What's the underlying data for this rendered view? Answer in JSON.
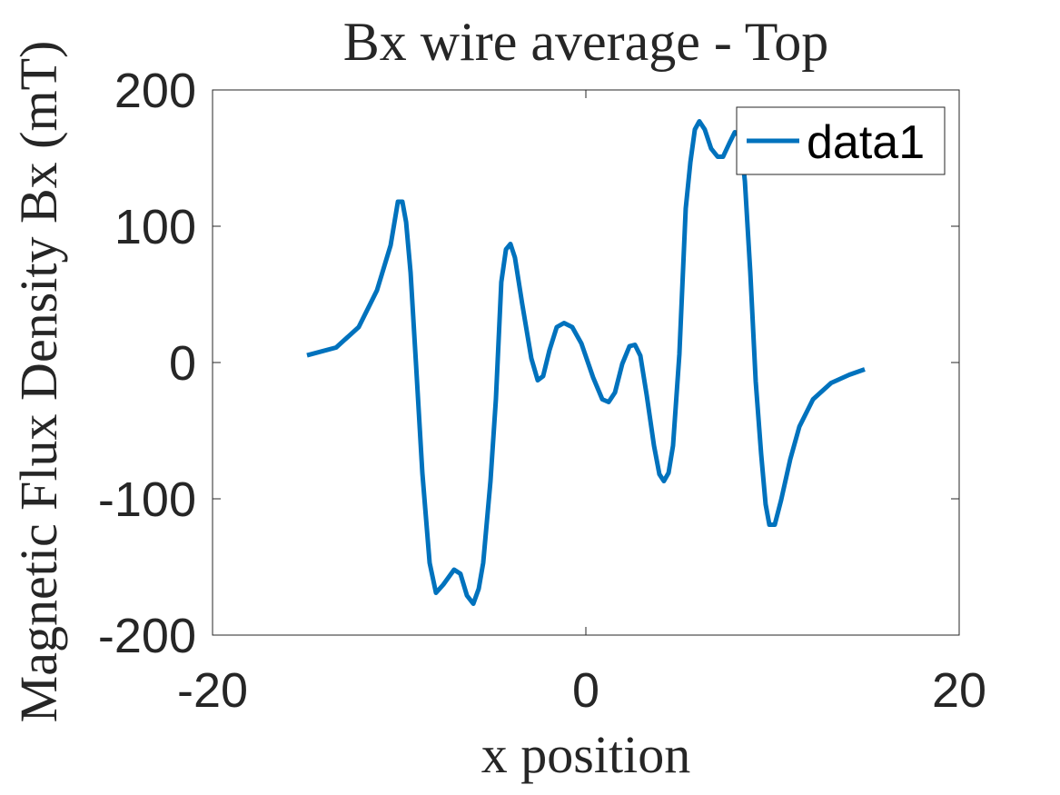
{
  "chart_data": {
    "type": "line",
    "title": "Bx wire average - Top",
    "xlabel": "x position",
    "ylabel": "Magnetic Flux Density Bx (mT)",
    "xlim": [
      -20,
      20
    ],
    "xticks": [
      -20,
      0,
      20
    ],
    "ylim": [
      -200,
      200
    ],
    "yticks": [
      -200,
      -100,
      0,
      100,
      200
    ],
    "grid": false,
    "legend": "top-right",
    "series": [
      {
        "name": "data1",
        "color": "#0072bd",
        "x": [
          -14.94,
          -13.38,
          -12.17,
          -11.19,
          -10.46,
          -10.07,
          -9.83,
          -9.63,
          -9.39,
          -9.1,
          -8.76,
          -8.37,
          -8.03,
          -7.64,
          -7.06,
          -6.72,
          -6.37,
          -6.03,
          -5.74,
          -5.5,
          -5.11,
          -4.82,
          -4.53,
          -4.28,
          -4.04,
          -3.8,
          -3.41,
          -2.92,
          -2.58,
          -2.29,
          -1.95,
          -1.56,
          -1.17,
          -0.73,
          -0.24,
          0.39,
          0.88,
          1.22,
          1.56,
          1.95,
          2.34,
          2.63,
          2.92,
          3.26,
          3.65,
          3.94,
          4.18,
          4.43,
          4.67,
          5.01,
          5.35,
          5.6,
          5.84,
          6.08,
          6.37,
          6.71,
          7.06,
          7.35,
          7.69,
          7.98,
          8.27,
          8.52,
          8.81,
          9.1,
          9.39,
          9.63,
          9.83,
          10.12,
          10.46,
          10.95,
          11.44,
          12.17,
          13.14,
          14.11,
          14.94
        ],
        "values": [
          5.3,
          11,
          26,
          53,
          86,
          118,
          118,
          103,
          66,
          -1,
          -81,
          -147,
          -169,
          -163,
          -152,
          -155,
          -171,
          -177,
          -166,
          -147,
          -87,
          -27,
          59,
          83,
          87,
          77,
          43,
          3,
          -13,
          -10,
          9,
          26,
          29,
          26,
          14,
          -11,
          -27,
          -29,
          -22,
          -1,
          12,
          13,
          5,
          -24,
          -61,
          -82,
          -87,
          -81,
          -61,
          6,
          113,
          147,
          171,
          177,
          171,
          157,
          151,
          151,
          161,
          169,
          166,
          133,
          66,
          -14,
          -67,
          -104,
          -119,
          -119,
          -101,
          -71,
          -47,
          -27,
          -15,
          -9,
          -5
        ]
      }
    ]
  }
}
